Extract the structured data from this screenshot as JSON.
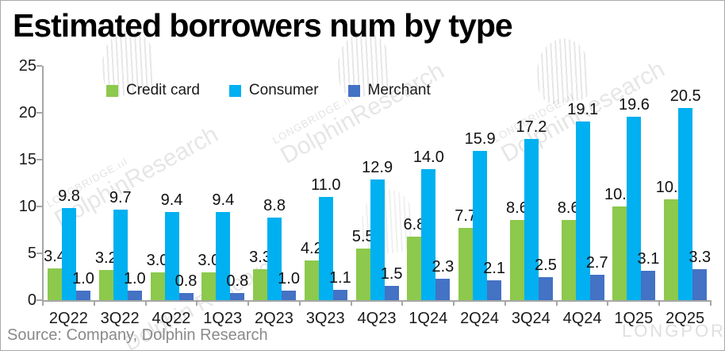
{
  "title": "Estimated borrowers num by type",
  "source_note": "Source: Company, Dolphin Research",
  "watermark": {
    "brand_small": "LONGBRIDGE.ııl",
    "brand_large": "DolphinResearch",
    "brand_spaced": "Dolphin Research",
    "longport": "LONGPORT"
  },
  "colors": {
    "credit_card": "#8CC94C",
    "consumer": "#00B0F0",
    "merchant": "#4472C4",
    "axis": "#A6A6A6",
    "label_text": "#111111",
    "source_text": "#8A8A8A"
  },
  "chart_data": {
    "type": "bar",
    "title": "Estimated borrowers num by type",
    "categories": [
      "2Q22",
      "3Q22",
      "4Q22",
      "1Q23",
      "2Q23",
      "3Q23",
      "4Q23",
      "1Q24",
      "2Q24",
      "3Q24",
      "4Q24",
      "1Q25",
      "2Q25"
    ],
    "series": [
      {
        "name": "Credit card",
        "color": "#8CC94C",
        "values": [
          3.4,
          3.2,
          3.0,
          3.0,
          3.3,
          4.2,
          5.5,
          6.8,
          7.7,
          8.6,
          8.6,
          10.0,
          10.8
        ]
      },
      {
        "name": "Consumer",
        "color": "#00B0F0",
        "values": [
          9.8,
          9.7,
          9.4,
          9.4,
          8.8,
          11.0,
          12.9,
          14.0,
          15.9,
          17.2,
          19.1,
          19.6,
          20.5
        ]
      },
      {
        "name": "Merchant",
        "color": "#4472C4",
        "values": [
          1.0,
          1.0,
          0.8,
          0.8,
          1.0,
          1.1,
          1.5,
          2.3,
          2.1,
          2.5,
          2.7,
          3.1,
          3.3
        ]
      }
    ],
    "xlabel": "",
    "ylabel": "",
    "ylim": [
      0,
      25
    ],
    "yticks": [
      0,
      5,
      10,
      15,
      20,
      25
    ],
    "grid": false,
    "legend_position": "top",
    "value_labels": true,
    "value_label_format": "0.1f"
  }
}
